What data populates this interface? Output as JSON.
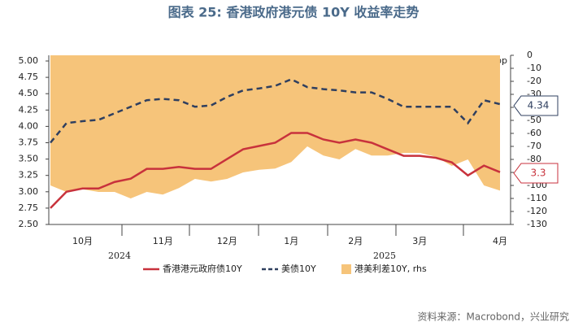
{
  "chart_data": {
    "type": "line",
    "title": "图表 25: 香港政府港元债 10Y 收益率走势",
    "y_unit": "%",
    "y2_unit": "bp",
    "categories": [
      null,
      null,
      "10月",
      null,
      null,
      null,
      null,
      "11月",
      null,
      null,
      null,
      "12月",
      null,
      null,
      null,
      "1月",
      null,
      null,
      null,
      "2月",
      null,
      null,
      null,
      "3月",
      null,
      null,
      null,
      null,
      "4月"
    ],
    "year_labels": [
      "2024",
      "2025"
    ],
    "series": [
      {
        "name": "香港港元政府债10Y",
        "color": "#c8323c",
        "style": "solid",
        "values": [
          2.75,
          3.0,
          3.05,
          3.05,
          3.15,
          3.2,
          3.35,
          3.35,
          3.38,
          3.35,
          3.35,
          3.5,
          3.65,
          3.7,
          3.75,
          3.9,
          3.9,
          3.8,
          3.75,
          3.8,
          3.75,
          3.65,
          3.55,
          3.55,
          3.52,
          3.45,
          3.25,
          3.4,
          3.3
        ]
      },
      {
        "name": "美债10Y",
        "color": "#2f3f5f",
        "style": "dashed",
        "values": [
          3.75,
          4.05,
          4.08,
          4.1,
          4.2,
          4.3,
          4.4,
          4.42,
          4.4,
          4.3,
          4.32,
          4.45,
          4.55,
          4.58,
          4.62,
          4.72,
          4.6,
          4.57,
          4.55,
          4.52,
          4.52,
          4.42,
          4.3,
          4.3,
          4.3,
          4.3,
          4.05,
          4.4,
          4.34
        ]
      },
      {
        "name": "港美利差10Y, rhs",
        "color": "#f6c47a",
        "style": "area",
        "axis": "y2",
        "values": [
          -100,
          -105,
          -103,
          -105,
          -105,
          -110,
          -105,
          -107,
          -102,
          -95,
          -97,
          -95,
          -90,
          -88,
          -87,
          -82,
          -70,
          -77,
          -80,
          -72,
          -77,
          -77,
          -75,
          -75,
          -78,
          -85,
          -80,
          -100,
          -104
        ]
      }
    ],
    "ylim": [
      2.5,
      5.0
    ],
    "yticks": [
      {
        "value": 2.5,
        "label": "2.50"
      },
      {
        "value": 2.75,
        "label": "2.75"
      },
      {
        "value": 3.0,
        "label": "3.00"
      },
      {
        "value": 3.25,
        "label": "3.25"
      },
      {
        "value": 3.5,
        "label": "3.50"
      },
      {
        "value": 3.75,
        "label": "3.75"
      },
      {
        "value": 4.0,
        "label": "4.00"
      },
      {
        "value": 4.25,
        "label": "4.25"
      },
      {
        "value": 4.5,
        "label": "4.50"
      },
      {
        "value": 4.75,
        "label": "4.75"
      },
      {
        "value": 5.0,
        "label": "5.00"
      }
    ],
    "y2lim": [
      -130,
      0
    ],
    "y2ticks": [
      0,
      -10,
      -20,
      -30,
      -40,
      -50,
      -60,
      -70,
      -80,
      -90,
      -100,
      -110,
      -120,
      -130
    ],
    "annotations": [
      "4.34",
      "3.3"
    ],
    "source": "资料来源：Macrobond，兴业研究"
  }
}
